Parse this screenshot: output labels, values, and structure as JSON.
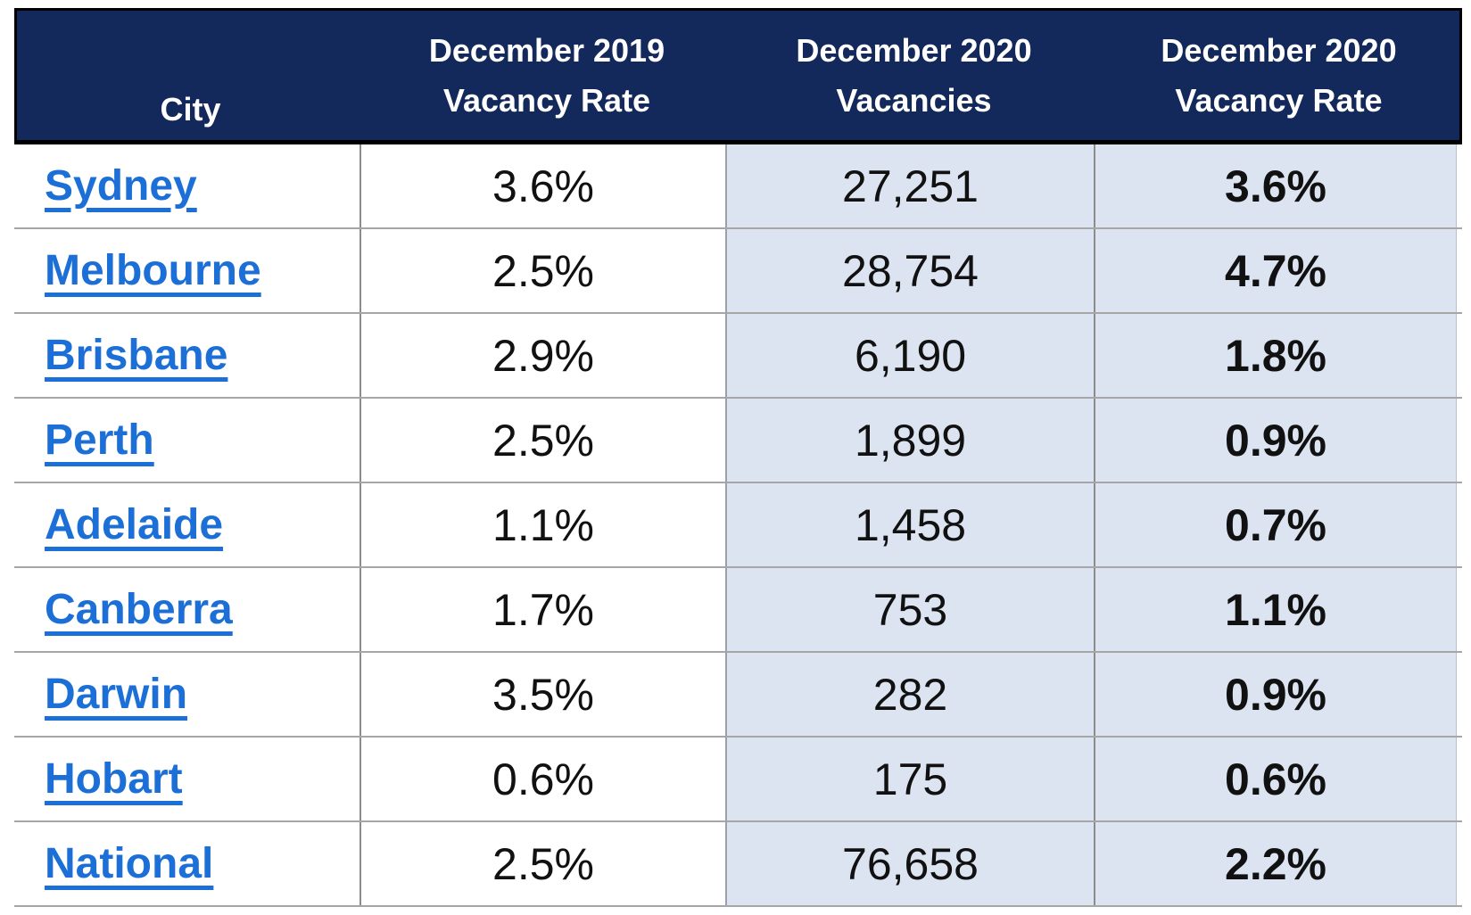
{
  "table": {
    "header": {
      "city": "City",
      "dec_2019_vacancy_rate": "December 2019\nVacancy Rate",
      "dec_2020_vacancies": "December 2020\nVacancies",
      "dec_2020_vacancy_rate": "December 2020\nVacancy Rate"
    },
    "rows": [
      {
        "city": "Sydney",
        "dec_2019_vacancy_rate": "3.6%",
        "dec_2020_vacancies": "27,251",
        "dec_2020_vacancy_rate": "3.6%"
      },
      {
        "city": "Melbourne",
        "dec_2019_vacancy_rate": "2.5%",
        "dec_2020_vacancies": "28,754",
        "dec_2020_vacancy_rate": "4.7%"
      },
      {
        "city": "Brisbane",
        "dec_2019_vacancy_rate": "2.9%",
        "dec_2020_vacancies": "6,190",
        "dec_2020_vacancy_rate": "1.8%"
      },
      {
        "city": "Perth",
        "dec_2019_vacancy_rate": "2.5%",
        "dec_2020_vacancies": "1,899",
        "dec_2020_vacancy_rate": "0.9%"
      },
      {
        "city": "Adelaide",
        "dec_2019_vacancy_rate": "1.1%",
        "dec_2020_vacancies": "1,458",
        "dec_2020_vacancy_rate": "0.7%"
      },
      {
        "city": "Canberra",
        "dec_2019_vacancy_rate": "1.7%",
        "dec_2020_vacancies": "753",
        "dec_2020_vacancy_rate": "1.1%"
      },
      {
        "city": "Darwin",
        "dec_2019_vacancy_rate": "3.5%",
        "dec_2020_vacancies": "282",
        "dec_2020_vacancy_rate": "0.9%"
      },
      {
        "city": "Hobart",
        "dec_2019_vacancy_rate": "0.6%",
        "dec_2020_vacancies": "175",
        "dec_2020_vacancy_rate": "0.6%"
      },
      {
        "city": "National",
        "dec_2019_vacancy_rate": "2.5%",
        "dec_2020_vacancies": "76,658",
        "dec_2020_vacancy_rate": "2.2%"
      }
    ]
  },
  "colors": {
    "header_bg": "#13295B",
    "shaded_bg": "#DCE3F1",
    "link_blue": "#1B6FD6"
  },
  "chart_data": {
    "type": "table",
    "columns": [
      "City",
      "December 2019 Vacancy Rate",
      "December 2020 Vacancies",
      "December 2020 Vacancy Rate"
    ],
    "rows": [
      [
        "Sydney",
        "3.6%",
        "27,251",
        "3.6%"
      ],
      [
        "Melbourne",
        "2.5%",
        "28,754",
        "4.7%"
      ],
      [
        "Brisbane",
        "2.9%",
        "6,190",
        "1.8%"
      ],
      [
        "Perth",
        "2.5%",
        "1,899",
        "0.9%"
      ],
      [
        "Adelaide",
        "1.1%",
        "1,458",
        "0.7%"
      ],
      [
        "Canberra",
        "1.7%",
        "753",
        "1.1%"
      ],
      [
        "Darwin",
        "3.5%",
        "282",
        "0.9%"
      ],
      [
        "Hobart",
        "0.6%",
        "175",
        "0.6%"
      ],
      [
        "National",
        "2.5%",
        "76,658",
        "2.2%"
      ]
    ]
  }
}
